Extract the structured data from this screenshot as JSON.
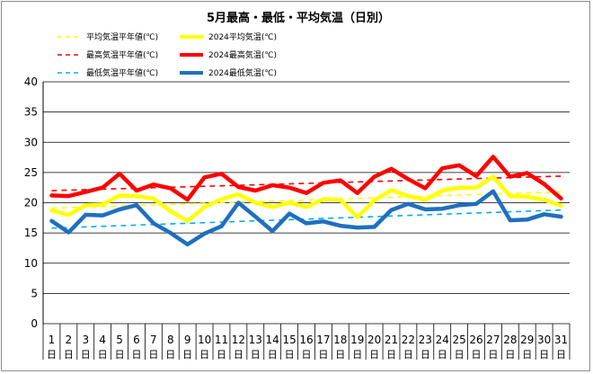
{
  "chart_data": {
    "type": "line",
    "title": "5月最高・最低・平均気温（日別）",
    "xlabel": "",
    "ylabel": "",
    "ylim": [
      0,
      40
    ],
    "yticks": [
      0,
      5,
      10,
      15,
      20,
      25,
      30,
      35,
      40
    ],
    "grid": true,
    "legend_position": "top-left",
    "categories": [
      "1",
      "2",
      "3",
      "4",
      "5",
      "6",
      "7",
      "8",
      "9",
      "10",
      "11",
      "12",
      "13",
      "14",
      "15",
      "16",
      "17",
      "18",
      "19",
      "20",
      "21",
      "22",
      "23",
      "24",
      "25",
      "26",
      "27",
      "28",
      "29",
      "30",
      "31"
    ],
    "category_suffix": "日",
    "series": [
      {
        "name": "平均気温平年値(℃)",
        "style": "dashed",
        "color": "#ffff00",
        "values": [
          19.1,
          19.2,
          19.3,
          19.4,
          19.5,
          19.6,
          19.7,
          19.8,
          19.8,
          19.9,
          20.0,
          20.1,
          20.2,
          20.2,
          20.3,
          20.4,
          20.5,
          20.6,
          20.7,
          20.8,
          20.9,
          21.0,
          21.0,
          21.1,
          21.2,
          21.3,
          21.4,
          21.5,
          21.6,
          21.7,
          21.8
        ]
      },
      {
        "name": "2024平均気温(℃)",
        "style": "solid",
        "color": "#ffff00",
        "values": [
          18.7,
          18.0,
          19.6,
          19.7,
          21.2,
          21.1,
          20.7,
          18.6,
          17.0,
          19.3,
          20.6,
          21.4,
          20.0,
          19.3,
          20.0,
          19.3,
          20.6,
          20.5,
          17.6,
          20.4,
          22.1,
          21.1,
          20.5,
          22.0,
          22.5,
          22.5,
          24.3,
          21.1,
          21.0,
          20.5,
          19.5
        ]
      },
      {
        "name": "最高気温平年値(℃)",
        "style": "dashed",
        "color": "#ff0000",
        "values": [
          22.0,
          22.1,
          22.2,
          22.3,
          22.3,
          22.4,
          22.5,
          22.6,
          22.6,
          22.7,
          22.8,
          22.9,
          22.9,
          23.0,
          23.1,
          23.2,
          23.3,
          23.3,
          23.4,
          23.5,
          23.6,
          23.6,
          23.7,
          23.8,
          23.9,
          23.9,
          24.0,
          24.1,
          24.2,
          24.3,
          24.4
        ]
      },
      {
        "name": "2024最高気温(℃)",
        "style": "solid",
        "color": "#ff0000",
        "values": [
          21.2,
          21.1,
          21.8,
          22.5,
          24.8,
          22.0,
          23.0,
          22.4,
          20.5,
          24.2,
          24.8,
          22.6,
          22.0,
          22.9,
          22.5,
          21.6,
          23.3,
          23.7,
          21.6,
          24.3,
          25.6,
          23.9,
          22.4,
          25.7,
          26.2,
          24.4,
          27.6,
          24.3,
          24.9,
          23.1,
          20.7
        ]
      },
      {
        "name": "最低気温平年値(℃)",
        "style": "dashed",
        "color": "#00b0f0",
        "values": [
          15.8,
          15.9,
          16.0,
          16.2,
          16.3,
          16.4,
          16.5,
          16.6,
          16.7,
          16.8,
          16.9,
          17.0,
          17.1,
          17.2,
          17.3,
          17.4,
          17.5,
          17.6,
          17.7,
          17.8,
          17.9,
          18.0,
          18.0,
          18.1,
          18.2,
          18.3,
          18.4,
          18.5,
          18.6,
          18.7,
          18.8
        ]
      },
      {
        "name": "2024最低気温(℃)",
        "style": "solid",
        "color": "#1f6fbf",
        "values": [
          17.0,
          15.1,
          18.0,
          17.9,
          18.9,
          19.6,
          16.6,
          15.0,
          13.1,
          14.9,
          16.1,
          20.0,
          17.7,
          15.3,
          18.2,
          16.6,
          16.9,
          16.2,
          15.9,
          16.0,
          18.8,
          19.8,
          18.9,
          19.0,
          19.6,
          19.8,
          21.9,
          17.1,
          17.2,
          18.1,
          17.7
        ]
      }
    ]
  }
}
